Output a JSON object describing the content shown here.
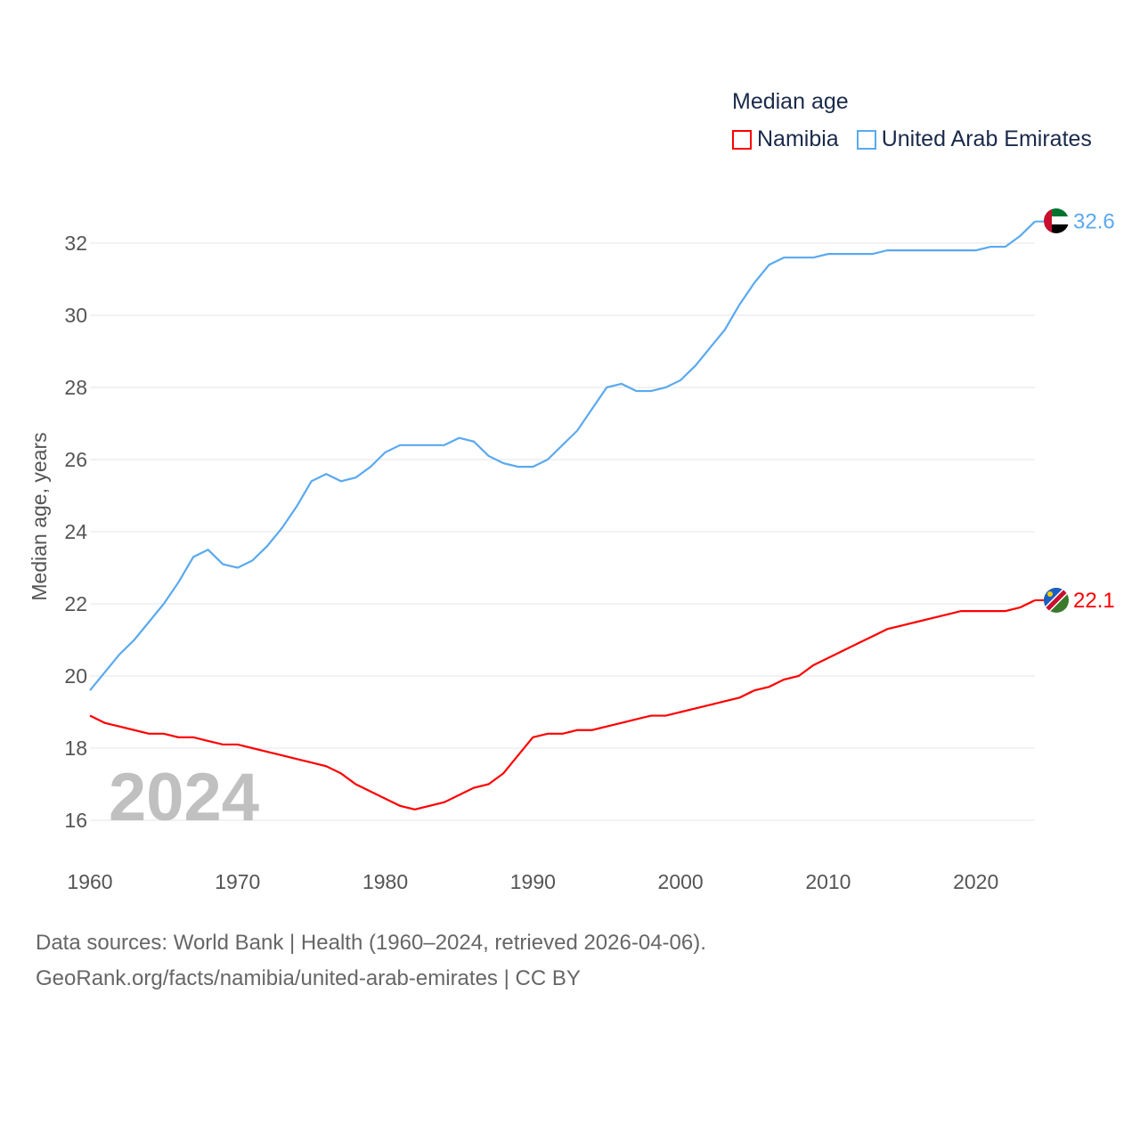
{
  "chart_data": {
    "type": "line",
    "title": "Median age",
    "ylabel": "Median age, years",
    "xlabel": "",
    "xlim": [
      1960,
      2024
    ],
    "ylim": [
      15,
      33
    ],
    "yticks": [
      16,
      18,
      20,
      22,
      24,
      26,
      28,
      30,
      32
    ],
    "xticks": [
      1960,
      1970,
      1980,
      1990,
      2000,
      2010,
      2020
    ],
    "grid": true,
    "legend_placement": "top-right",
    "year_label": "2024",
    "x": [
      1960,
      1961,
      1962,
      1963,
      1964,
      1965,
      1966,
      1967,
      1968,
      1969,
      1970,
      1971,
      1972,
      1973,
      1974,
      1975,
      1976,
      1977,
      1978,
      1979,
      1980,
      1981,
      1982,
      1983,
      1984,
      1985,
      1986,
      1987,
      1988,
      1989,
      1990,
      1991,
      1992,
      1993,
      1994,
      1995,
      1996,
      1997,
      1998,
      1999,
      2000,
      2001,
      2002,
      2003,
      2004,
      2005,
      2006,
      2007,
      2008,
      2009,
      2010,
      2011,
      2012,
      2013,
      2014,
      2015,
      2016,
      2017,
      2018,
      2019,
      2020,
      2021,
      2022,
      2023,
      2024
    ],
    "series": [
      {
        "name": "Namibia",
        "color": "#ff0000",
        "end_label": "22.1",
        "values": [
          18.9,
          18.7,
          18.6,
          18.5,
          18.4,
          18.4,
          18.3,
          18.3,
          18.2,
          18.1,
          18.1,
          18.0,
          17.9,
          17.8,
          17.7,
          17.6,
          17.5,
          17.3,
          17.0,
          16.8,
          16.6,
          16.4,
          16.3,
          16.4,
          16.5,
          16.7,
          16.9,
          17.0,
          17.3,
          17.8,
          18.3,
          18.4,
          18.4,
          18.5,
          18.5,
          18.6,
          18.7,
          18.8,
          18.9,
          18.9,
          19.0,
          19.1,
          19.2,
          19.3,
          19.4,
          19.6,
          19.7,
          19.9,
          20.0,
          20.3,
          20.5,
          20.7,
          20.9,
          21.1,
          21.3,
          21.4,
          21.5,
          21.6,
          21.7,
          21.8,
          21.8,
          21.8,
          21.8,
          21.9,
          22.1
        ]
      },
      {
        "name": "United Arab Emirates",
        "color": "#5aa9ef",
        "end_label": "32.6",
        "values": [
          19.6,
          20.1,
          20.6,
          21.0,
          21.5,
          22.0,
          22.6,
          23.3,
          23.5,
          23.1,
          23.0,
          23.2,
          23.6,
          24.1,
          24.7,
          25.4,
          25.6,
          25.4,
          25.5,
          25.8,
          26.2,
          26.4,
          26.4,
          26.4,
          26.4,
          26.6,
          26.5,
          26.1,
          25.9,
          25.8,
          25.8,
          26.0,
          26.4,
          26.8,
          27.4,
          28.0,
          28.1,
          27.9,
          27.9,
          28.0,
          28.2,
          28.6,
          29.1,
          29.6,
          30.3,
          30.9,
          31.4,
          31.6,
          31.6,
          31.6,
          31.7,
          31.7,
          31.7,
          31.7,
          31.8,
          31.8,
          31.8,
          31.8,
          31.8,
          31.8,
          31.8,
          31.9,
          31.9,
          32.2,
          32.6
        ]
      }
    ]
  },
  "footer": {
    "line1": "Data sources: World Bank | Health (1960–2024, retrieved 2026-04-06).",
    "line2": "GeoRank.org/facts/namibia/united-arab-emirates | CC BY"
  }
}
